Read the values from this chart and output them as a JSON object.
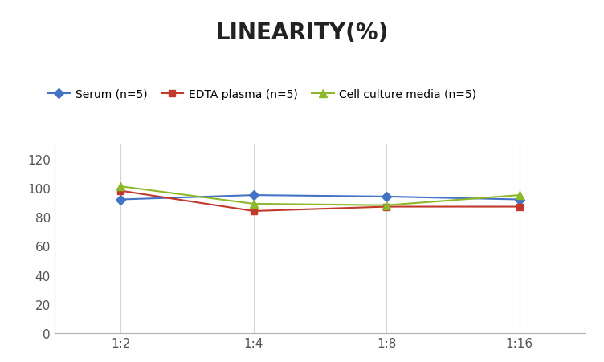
{
  "title": "LINEARITY(%)",
  "x_labels": [
    "1:2",
    "1:4",
    "1:8",
    "1:16"
  ],
  "series": [
    {
      "label": "Serum (n=5)",
      "values": [
        92,
        95,
        94,
        92
      ],
      "color": "#4472C4",
      "marker": "D",
      "markersize": 6
    },
    {
      "label": "EDTA plasma (n=5)",
      "values": [
        98,
        84,
        87,
        87
      ],
      "color": "#C0392B",
      "marker": "s",
      "markersize": 6
    },
    {
      "label": "Cell culture media (n=5)",
      "values": [
        101,
        89,
        88,
        95
      ],
      "color": "#8DB829",
      "marker": "^",
      "markersize": 7
    }
  ],
  "ylim": [
    0,
    130
  ],
  "yticks": [
    0,
    20,
    40,
    60,
    80,
    100,
    120
  ],
  "background_color": "#ffffff",
  "grid_color": "#d3d3d3",
  "title_fontsize": 20,
  "legend_fontsize": 10,
  "tick_fontsize": 11
}
